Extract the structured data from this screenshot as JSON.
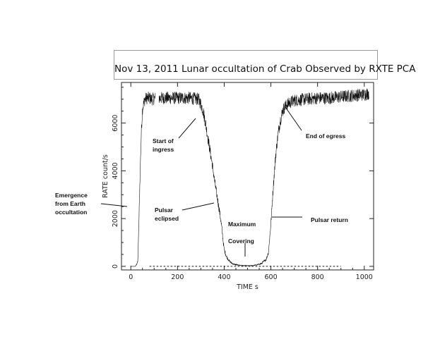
{
  "chart_data": {
    "type": "line",
    "title": "Nov 13, 2011 Lunar occultation of Crab Observed by RXTE PCA",
    "xlabel": "TIME  s",
    "ylabel": "RATE  count/s",
    "xlim": [
      -40,
      1040
    ],
    "ylim": [
      -150,
      7700
    ],
    "xticks": [
      0,
      200,
      400,
      600,
      800,
      1000
    ],
    "yticks": [
      0,
      2000,
      4000,
      6000
    ],
    "grid": false,
    "series": [
      {
        "name": "",
        "x": [
          0,
          20,
          30,
          35,
          40,
          45,
          50,
          60,
          70,
          80,
          90,
          110,
          120,
          130,
          150,
          200,
          250,
          290,
          300,
          310,
          320,
          330,
          340,
          350,
          360,
          370,
          380,
          390,
          395,
          400,
          410,
          420,
          430,
          440,
          460,
          480,
          500,
          520,
          540,
          560,
          580,
          590,
          600,
          610,
          620,
          630,
          640,
          650,
          660,
          680,
          700,
          750,
          800,
          850,
          900,
          950,
          1000,
          1020
        ],
        "y": [
          0,
          0,
          200,
          2000,
          4000,
          5600,
          6600,
          7000,
          7050,
          7050,
          7000,
          7050,
          7050,
          7050,
          7050,
          7050,
          7050,
          7000,
          6800,
          6500,
          6000,
          5400,
          4800,
          4200,
          3500,
          2900,
          2300,
          1600,
          1100,
          700,
          400,
          250,
          150,
          90,
          50,
          30,
          25,
          30,
          60,
          120,
          300,
          600,
          1800,
          3300,
          4600,
          5500,
          6100,
          6500,
          6700,
          6850,
          6950,
          7000,
          7050,
          7050,
          7100,
          7150,
          7200,
          7250
        ]
      },
      {
        "name": "",
        "x": [
          80,
          900
        ],
        "y": [
          0,
          0
        ]
      }
    ],
    "annotations": [
      "Emergence\nfrom Earth\noccultation",
      "Start of\ningress",
      "Pulsar\neclipsed",
      "Maximum\n\nCovering",
      "Pulsar return",
      "End of egress"
    ]
  }
}
